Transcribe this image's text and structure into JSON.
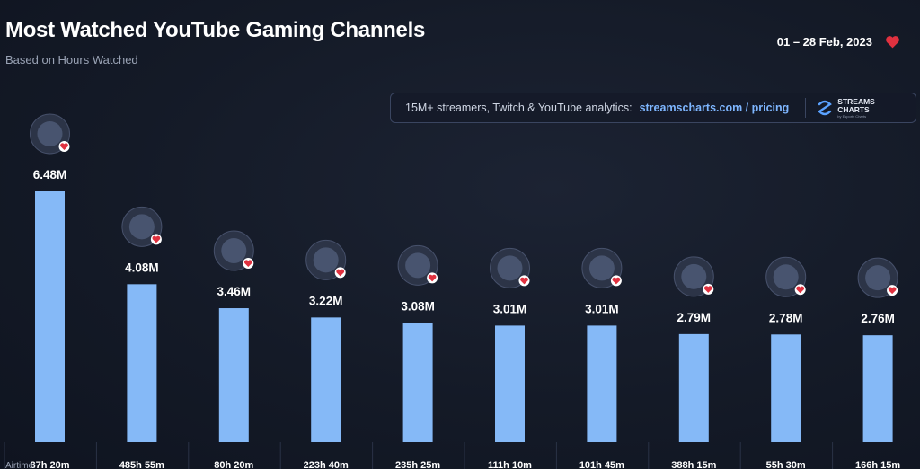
{
  "header": {
    "title": "Most Watched YouTube Gaming Channels",
    "subtitle": "Based on Hours Watched",
    "date_range": "01 – 28 Feb, 2023"
  },
  "banner": {
    "text": "15M+ streamers, Twitch & YouTube analytics:",
    "link": "streamscharts.com / pricing",
    "logo_line1": "STREAMS",
    "logo_line2": "CHARTS",
    "logo_sub": "by Esports Charts"
  },
  "colors": {
    "bar": "#85b9f7",
    "heart": "#e0313f",
    "link": "#7eb6ff"
  },
  "airtime_prefix": "Airtime:",
  "chart_data": {
    "type": "bar",
    "values": [
      6.48,
      4.08,
      3.46,
      3.22,
      3.08,
      3.01,
      3.01,
      2.79,
      2.78,
      2.76
    ],
    "value_labels": [
      "6.48M",
      "4.08M",
      "3.46M",
      "3.22M",
      "3.08M",
      "3.01M",
      "3.01M",
      "2.79M",
      "2.78M",
      "2.76M"
    ],
    "airtime": [
      "87h 20m",
      "485h 55m",
      "80h 20m",
      "223h 40m",
      "235h 25m",
      "111h 10m",
      "101h 45m",
      "388h 15m",
      "55h 30m",
      "166h 15m"
    ],
    "avatars": [
      "wolf-logo-icon",
      "anime-thumbnail-icon",
      "one-piece-icon",
      "anime-thumbnail-icon",
      "team-logo-icon",
      "bird-logo-icon",
      "character-portrait-icon",
      "lightning-logo-icon",
      "shield-logo-icon",
      "valorant-logo-icon"
    ],
    "ylim": [
      0,
      6.48
    ]
  }
}
